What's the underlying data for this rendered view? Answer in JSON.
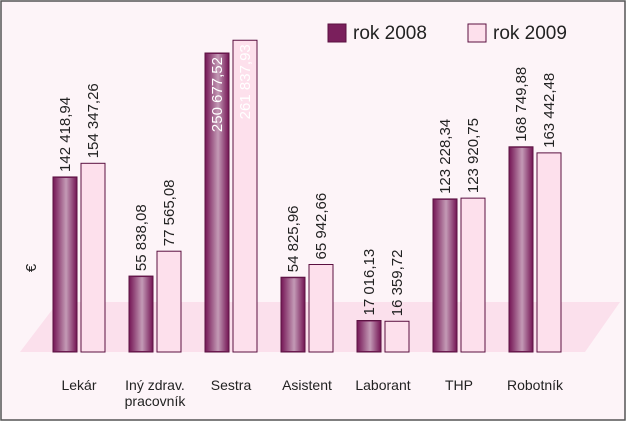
{
  "chart_data": {
    "type": "bar",
    "y_label": "€",
    "categories": [
      "Lekár",
      "Iný zdrav. pracovník",
      "Sestra",
      "Asistent",
      "Laborant",
      "THP",
      "Robotník"
    ],
    "series": [
      {
        "name": "rok 2008",
        "color": "#7a1f5c",
        "values": [
          142418.94,
          55838.08,
          250677.52,
          54825.96,
          17016.13,
          123228.34,
          168749.88
        ],
        "value_labels": [
          "142 418,94",
          "55 838,08",
          "250 677,52",
          "54 825,96",
          "17 016,13",
          "123 228,34",
          "168 749,88"
        ]
      },
      {
        "name": "rok 2009",
        "color": "#fde0ec",
        "values": [
          154347.26,
          77565.08,
          261837.93,
          65942.66,
          16359.72,
          123920.75,
          163442.48
        ],
        "value_labels": [
          "154 347,26",
          "77 565,08",
          "261 837,93",
          "65 942,66",
          "16 359,72",
          "123 920,75",
          "163 442,48"
        ]
      }
    ],
    "ylim": [
      0,
      290000
    ],
    "legend": "top-right"
  }
}
